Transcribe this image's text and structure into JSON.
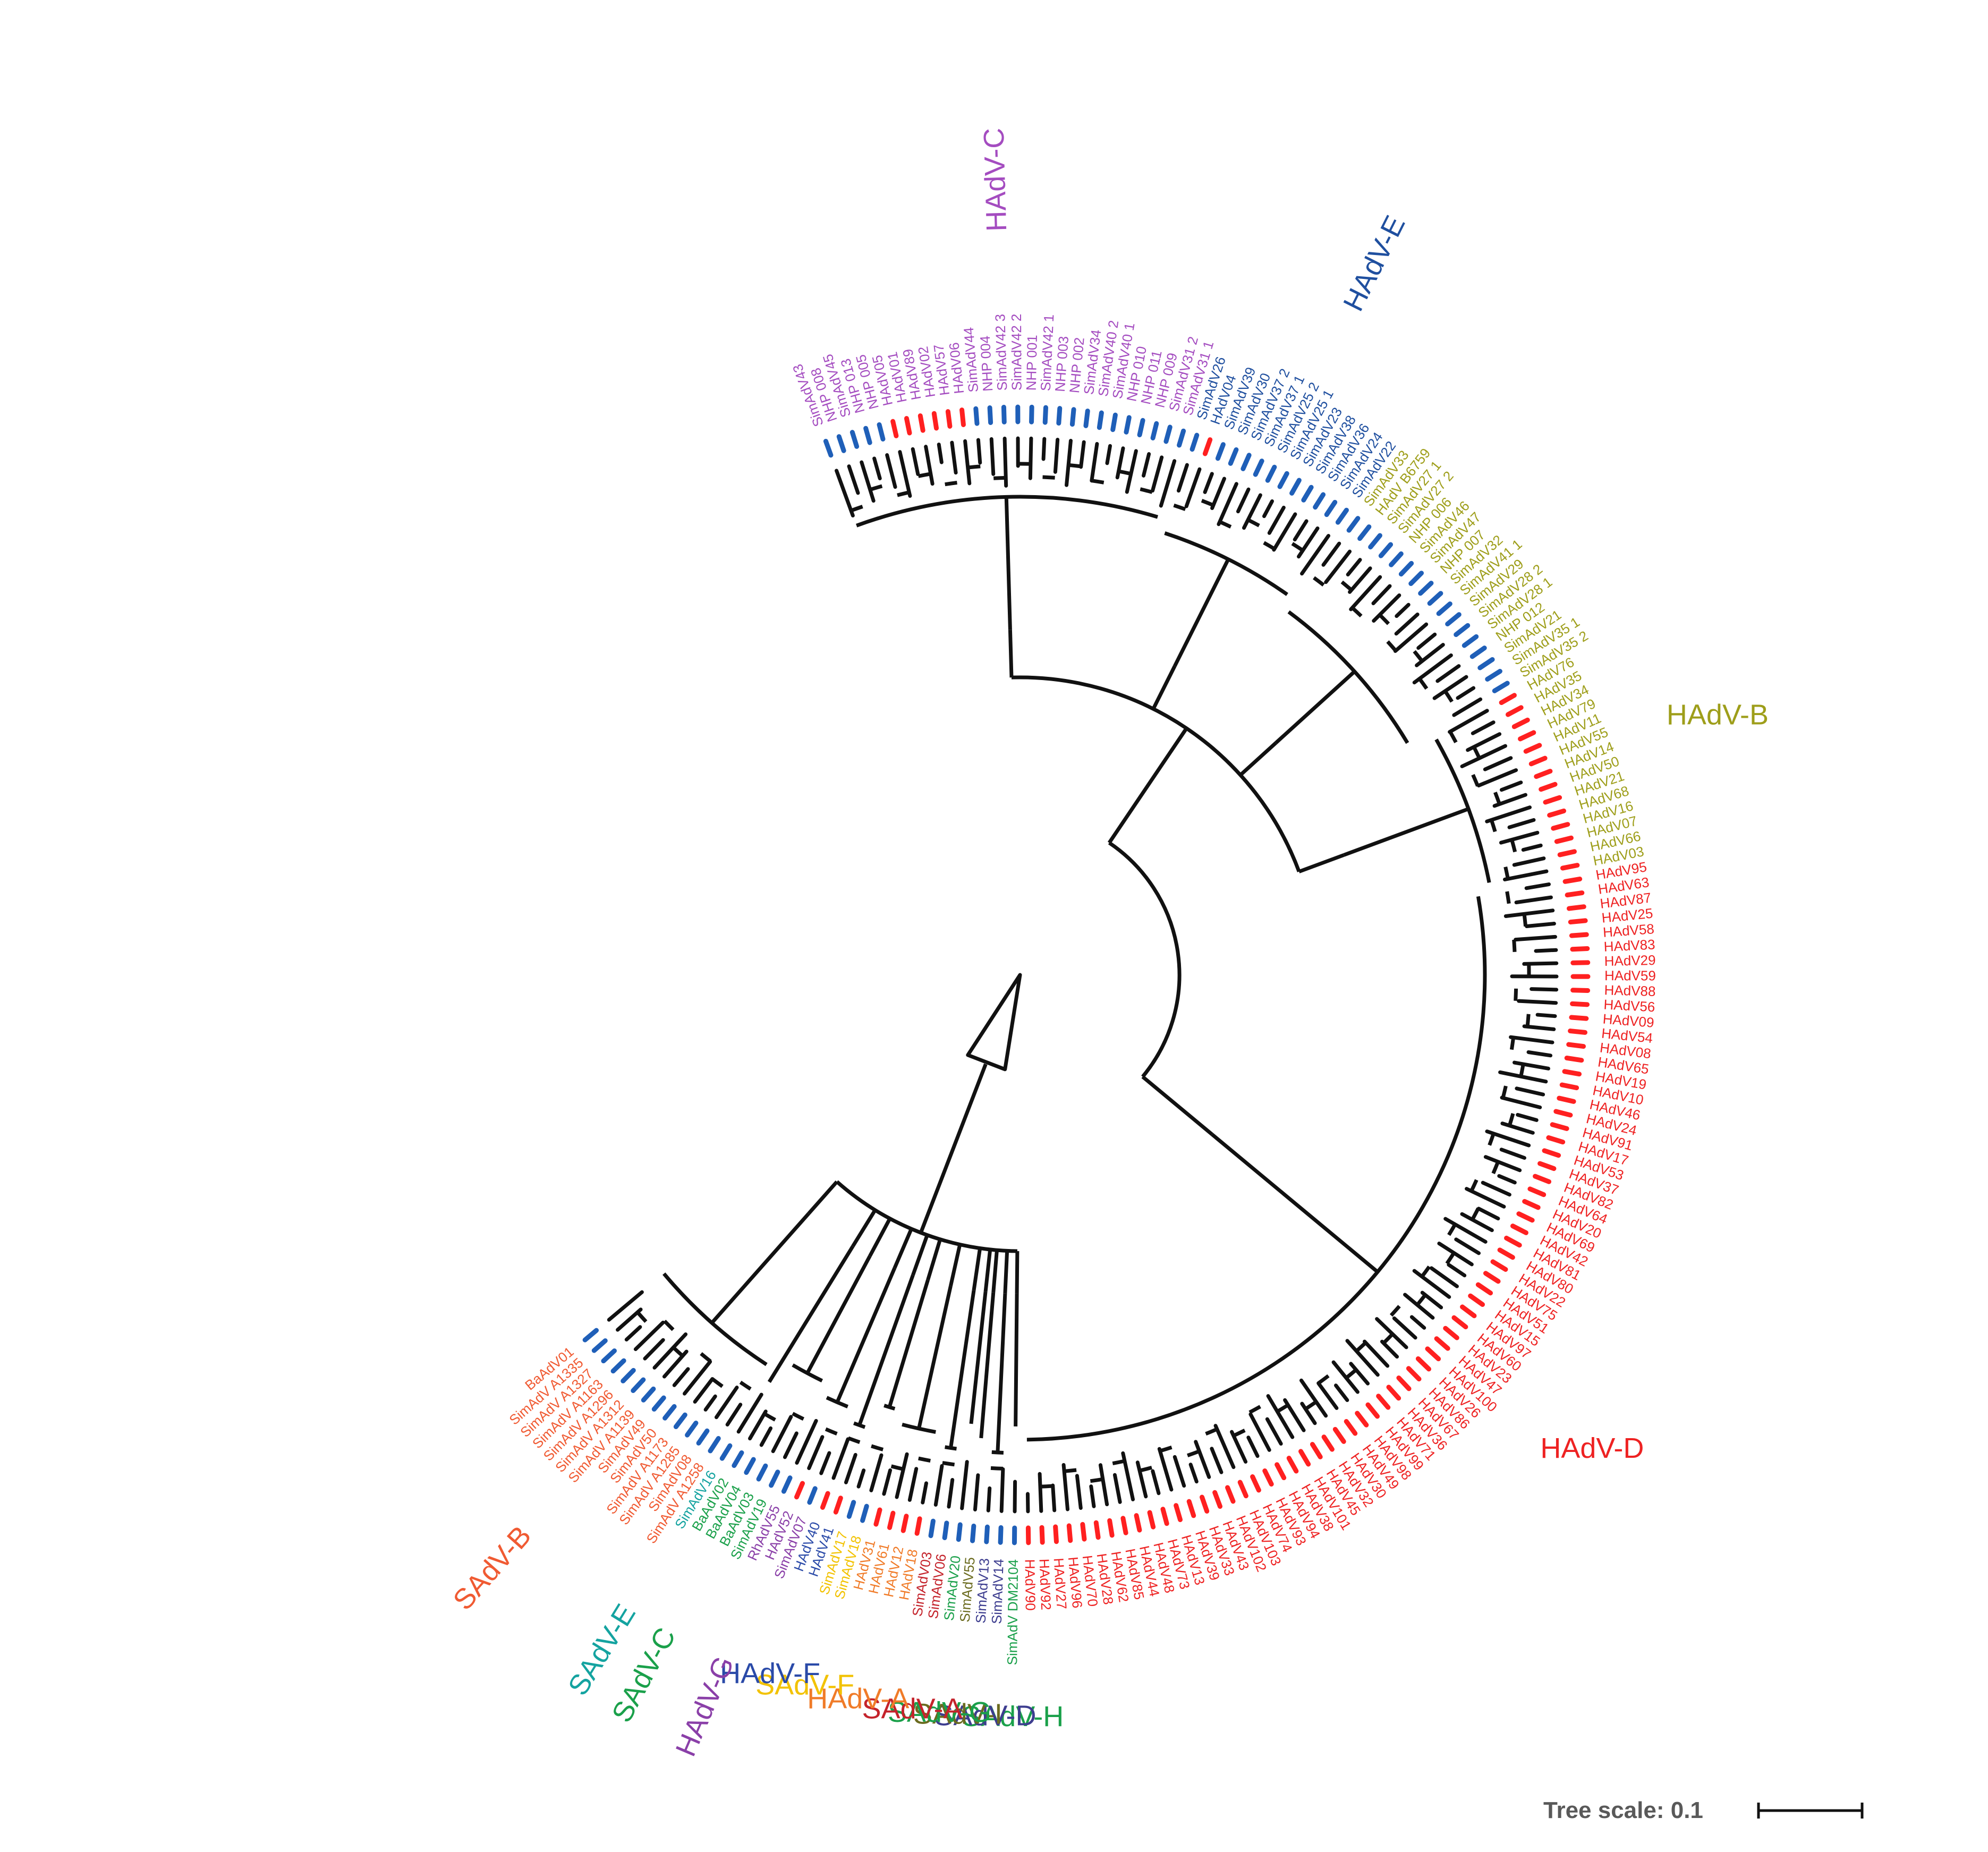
{
  "tree_scale": {
    "label": "Tree scale: 0.1"
  },
  "colors": {
    "branch": "#111111",
    "human_marker": "#ff2020",
    "simian_marker": "#1f5fb8"
  },
  "clades": [
    {
      "id": "HAdV-C",
      "name": "HAdV-C",
      "color": "#a44cc0",
      "leaves": [
        "SimAdV43",
        "NHP 008",
        "SimAdV45",
        "NHP 013",
        "NHP 005",
        "HAdV05",
        "HAdV01",
        "HAdV89",
        "HAdV02",
        "HAdV57",
        "HAdV06",
        "SimAdV44",
        "NHP 004",
        "SimAdV42 3",
        "SimAdV42 2",
        "NHP 001",
        "SimAdV42 1",
        "NHP 003",
        "NHP 002",
        "SimAdV34",
        "SimAdV40 2",
        "SimAdV40 1",
        "NHP 010",
        "NHP 011",
        "NHP 009",
        "SimAdV31 2",
        "SimAdV31 1"
      ]
    },
    {
      "id": "HAdV-E",
      "name": "HAdV-E",
      "color": "#1f4f9f",
      "leaves": [
        "SimAdV26",
        "HAdV04",
        "SimAdV39",
        "SimAdV30",
        "SimAdV37 2",
        "SimAdV37 1",
        "SimAdV25 2",
        "SimAdV25 1",
        "SimAdV23",
        "SimAdV38",
        "SimAdV36",
        "SimAdV24",
        "SimAdV22"
      ]
    },
    {
      "id": "HAdV-B-sim",
      "name": "",
      "color": "#9e9e1a",
      "leaves": [
        "SimAdV33",
        "HAdV B6759",
        "SimAdV27 1",
        "SimAdV27 2",
        "NHP 006",
        "SimAdV46",
        "SimAdV47",
        "NHP 007",
        "SimAdV32",
        "SimAdV41 1",
        "SimAdV29",
        "SimAdV28 2",
        "SimAdV28 1",
        "NHP 012",
        "SimAdV21",
        "SimAdV35 1",
        "SimAdV35 2"
      ]
    },
    {
      "id": "HAdV-B",
      "name": "HAdV-B",
      "color": "#9e9e1a",
      "leaves": [
        "HAdV76",
        "HAdV35",
        "HAdV34",
        "HAdV79",
        "HAdV11",
        "HAdV55",
        "HAdV14",
        "HAdV50",
        "HAdV21",
        "HAdV68",
        "HAdV16",
        "HAdV07",
        "HAdV66",
        "HAdV03"
      ]
    },
    {
      "id": "HAdV-D",
      "name": "HAdV-D",
      "color": "#ee2222",
      "leaves": [
        "HAdV95",
        "HAdV63",
        "HAdV87",
        "HAdV25",
        "HAdV58",
        "HAdV83",
        "HAdV29",
        "HAdV59",
        "HAdV88",
        "HAdV56",
        "HAdV09",
        "HAdV54",
        "HAdV08",
        "HAdV65",
        "HAdV19",
        "HAdV10",
        "HAdV46",
        "HAdV24",
        "HAdV91",
        "HAdV17",
        "HAdV53",
        "HAdV37",
        "HAdV82",
        "HAdV64",
        "HAdV20",
        "HAdV69",
        "HAdV42",
        "HAdV81",
        "HAdV80",
        "HAdV22",
        "HAdV75",
        "HAdV51",
        "HAdV15",
        "HAdV97",
        "HAdV60",
        "HAdV23",
        "HAdV47",
        "HAdV100",
        "HAdV26",
        "HAdV86",
        "HAdV67",
        "HAdV36",
        "HAdV71",
        "HAdV99",
        "HAdV98",
        "HAdV49",
        "HAdV30",
        "HAdV32",
        "HAdV45",
        "HAdV101",
        "HAdV38",
        "HAdV94",
        "HAdV93",
        "HAdV74",
        "HAdV103",
        "HAdV102",
        "HAdV43",
        "HAdV33",
        "HAdV39",
        "HAdV13",
        "HAdV73",
        "HAdV48",
        "HAdV44",
        "HAdV85",
        "HAdV62",
        "HAdV28",
        "HAdV70",
        "HAdV96",
        "HAdV27",
        "HAdV92",
        "HAdV90"
      ]
    },
    {
      "id": "SAdV-H",
      "name": "SAdV-H",
      "color": "#1aa04a",
      "leaves": [
        "SimAdV DM2104"
      ]
    },
    {
      "id": "SAdV-D",
      "name": "SAdV-D",
      "color": "#3d3d8f",
      "leaves": [
        "SimAdV14",
        "SimAdV13"
      ]
    },
    {
      "id": "SAdV-I",
      "name": "SAdV-I",
      "color": "#6b6b1f",
      "leaves": [
        "SimAdV55"
      ]
    },
    {
      "id": "SAdV-G",
      "name": "SAdV-G",
      "color": "#1aa04a",
      "leaves": [
        "SimAdV20"
      ]
    },
    {
      "id": "SAdV-A",
      "name": "SAdV-A",
      "color": "#c4232b",
      "leaves": [
        "SimAdV06",
        "SimAdV03"
      ]
    },
    {
      "id": "HAdV-A",
      "name": "HAdV-A",
      "color": "#f07b28",
      "leaves": [
        "HAdV18",
        "HAdV12",
        "HAdV61",
        "HAdV31"
      ]
    },
    {
      "id": "SAdV-F",
      "name": "SAdV-F",
      "color": "#f2c200",
      "leaves": [
        "SimAdV18",
        "SimAdV17"
      ]
    },
    {
      "id": "HAdV-F",
      "name": "HAdV-F",
      "color": "#2a4aa8",
      "leaves": [
        "HAdV41",
        "HAdV40"
      ]
    },
    {
      "id": "HAdV-G",
      "name": "HAdV-G",
      "color": "#8a3fa8",
      "leaves": [
        "SimAdV07",
        "HAdV52",
        "RhAdV55"
      ]
    },
    {
      "id": "SAdV-C",
      "name": "SAdV-C",
      "color": "#1aa04a",
      "leaves": [
        "SimAdV19",
        "BaAdV03",
        "BaAdV04",
        "BaAdV02"
      ]
    },
    {
      "id": "SAdV-E",
      "name": "SAdV-E",
      "color": "#14a3a0",
      "leaves": [
        "SimAdV16"
      ]
    },
    {
      "id": "SAdV-B",
      "name": "SAdV-B",
      "color": "#f05a32",
      "leaves": [
        "SimAdV A1258",
        "SimAdV08",
        "SimAdV A1285",
        "SimAdV A1173",
        "SimAdV50",
        "SimAdV49",
        "SimAdV A1139",
        "SimAdV A1312",
        "SimAdV A1296",
        "SimAdV A1163",
        "SimAdV A1327",
        "SimAdV A1335",
        "BaAdV01"
      ]
    }
  ]
}
